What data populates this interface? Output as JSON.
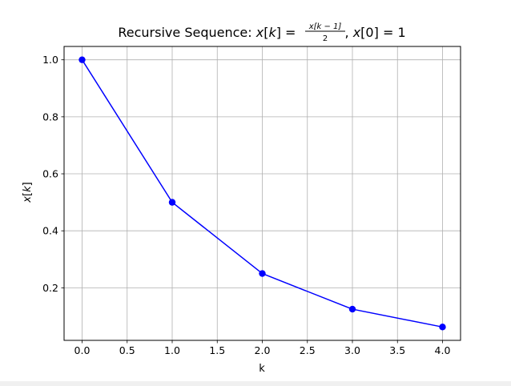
{
  "chart_data": {
    "type": "line",
    "title": {
      "prefix": "Recursive Sequence: ",
      "lhs_var": "x",
      "lhs_idx": "k",
      "frac_numerator": "x[k − 1]",
      "frac_denominator": "2",
      "cond_var": "x",
      "cond_idx": "0",
      "cond_value": "1"
    },
    "xlabel": "k",
    "ylabel": {
      "var": "x",
      "idx": "k"
    },
    "x": [
      0,
      1,
      2,
      3,
      4
    ],
    "series": [
      {
        "values": [
          1.0,
          0.5,
          0.25,
          0.125,
          0.0625
        ],
        "color": "#0000ff",
        "marker": "circle"
      }
    ],
    "xlim": [
      -0.2,
      4.2
    ],
    "ylim": [
      0.015625,
      1.046875
    ],
    "xticks": [
      "0.0",
      "0.5",
      "1.0",
      "1.5",
      "2.0",
      "2.5",
      "3.0",
      "3.5",
      "4.0"
    ],
    "yticks": [
      "0.2",
      "0.4",
      "0.6",
      "0.8",
      "1.0"
    ],
    "grid": true
  }
}
